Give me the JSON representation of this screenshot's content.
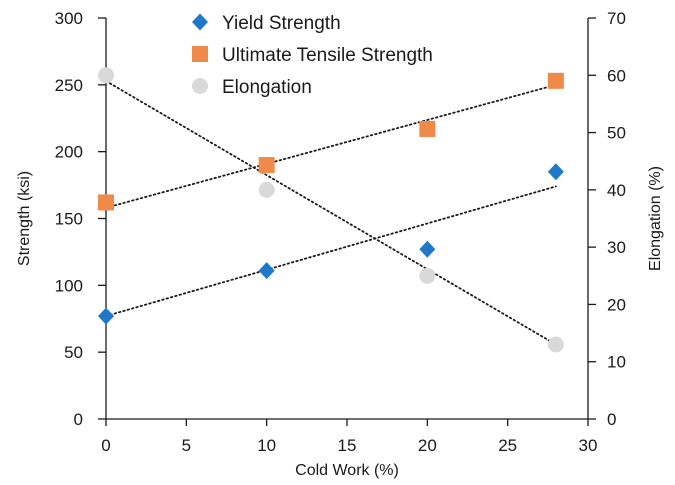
{
  "chart_data": {
    "type": "scatter",
    "x_axis": {
      "label": "Cold Work (%)",
      "range": [
        0,
        30
      ],
      "ticks": [
        0,
        5,
        10,
        15,
        20,
        25,
        30
      ]
    },
    "y_axis_left": {
      "label": "Strength (ksi)",
      "range": [
        0,
        300
      ],
      "ticks": [
        0,
        50,
        100,
        150,
        200,
        250,
        300
      ]
    },
    "y_axis_right": {
      "label": "Elongation (%)",
      "range": [
        0,
        70
      ],
      "ticks": [
        0,
        10,
        20,
        30,
        40,
        50,
        60,
        70
      ]
    },
    "grid": false,
    "legend_position": "top-center",
    "series": [
      {
        "name": "Yield Strength",
        "axis": "left",
        "marker": "diamond",
        "color": "#1f78c8",
        "x": [
          0,
          10,
          20,
          28
        ],
        "y": [
          77,
          111,
          127,
          185
        ],
        "trendline": {
          "x": [
            0,
            28
          ],
          "y": [
            77,
            174
          ]
        }
      },
      {
        "name": "Ultimate Tensile Strength",
        "axis": "left",
        "marker": "square",
        "color": "#f08a4b",
        "x": [
          0,
          10,
          20,
          28
        ],
        "y": [
          162,
          190,
          217,
          253
        ],
        "trendline": {
          "x": [
            0,
            28
          ],
          "y": [
            158,
            250
          ]
        }
      },
      {
        "name": "Elongation",
        "axis": "right",
        "marker": "circle",
        "color": "#d9d9d9",
        "x": [
          0,
          10,
          20,
          28
        ],
        "y": [
          60,
          40,
          25,
          13
        ],
        "trendline": {
          "x": [
            0,
            28
          ],
          "y": [
            59,
            13
          ]
        }
      }
    ]
  }
}
